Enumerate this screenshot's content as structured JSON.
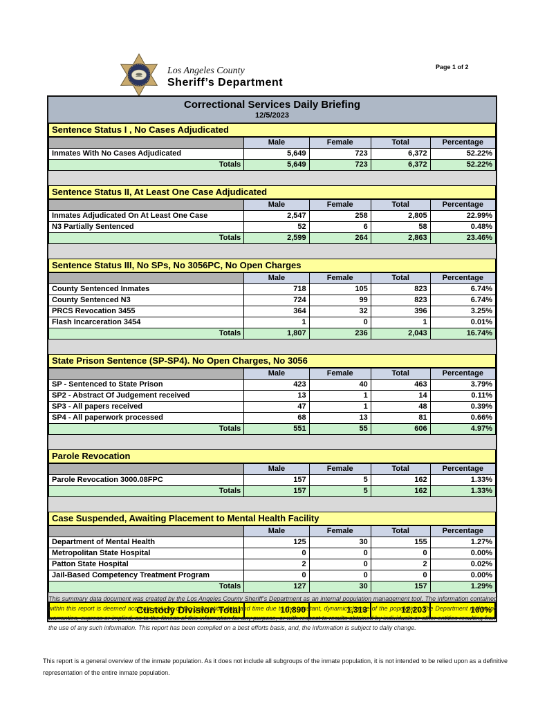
{
  "header": {
    "agency_line1": "Los Angeles County",
    "agency_line2": "Sheriff’s Department",
    "page_indicator": "Page 1 of 2"
  },
  "title_bar": {
    "title": "Correctional Services Daily Briefing",
    "date": "12/5/2023"
  },
  "columns": [
    "Male",
    "Female",
    "Total",
    "Percentage"
  ],
  "totals_label": "Totals",
  "sections": [
    {
      "heading": "Sentence Status I , No Cases Adjudicated",
      "rows": [
        [
          "Inmates With No Cases Adjudicated",
          "5,649",
          "723",
          "6,372",
          "52.22%"
        ]
      ],
      "totals": [
        "5,649",
        "723",
        "6,372",
        "52.22%"
      ]
    },
    {
      "heading": "Sentence Status II, At Least One Case Adjudicated",
      "rows": [
        [
          "Inmates Adjudicated On At Least One Case",
          "2,547",
          "258",
          "2,805",
          "22.99%"
        ],
        [
          "N3 Partially Sentenced",
          "52",
          "6",
          "58",
          "0.48%"
        ]
      ],
      "totals": [
        "2,599",
        "264",
        "2,863",
        "23.46%"
      ]
    },
    {
      "heading": "Sentence Status III, No SPs, No 3056PC, No Open Charges",
      "rows": [
        [
          "County Sentenced Inmates",
          "718",
          "105",
          "823",
          "6.74%"
        ],
        [
          "County Sentenced N3",
          "724",
          "99",
          "823",
          "6.74%"
        ],
        [
          "PRCS Revocation 3455",
          "364",
          "32",
          "396",
          "3.25%"
        ],
        [
          "Flash Incarceration 3454",
          "1",
          "0",
          "1",
          "0.01%"
        ]
      ],
      "totals": [
        "1,807",
        "236",
        "2,043",
        "16.74%"
      ]
    },
    {
      "heading": "State Prison Sentence (SP-SP4). No Open Charges, No 3056",
      "rows": [
        [
          "SP - Sentenced to State Prison",
          "423",
          "40",
          "463",
          "3.79%"
        ],
        [
          "SP2 - Abstract Of Judgement received",
          "13",
          "1",
          "14",
          "0.11%"
        ],
        [
          "SP3 - All papers received",
          "47",
          "1",
          "48",
          "0.39%"
        ],
        [
          "SP4 - All paperwork processed",
          "68",
          "13",
          "81",
          "0.66%"
        ]
      ],
      "totals": [
        "551",
        "55",
        "606",
        "4.97%"
      ]
    },
    {
      "heading": "Parole Revocation",
      "rows": [
        [
          "Parole Revocation 3000.08FPC",
          "157",
          "5",
          "162",
          "1.33%"
        ]
      ],
      "totals": [
        "157",
        "5",
        "162",
        "1.33%"
      ]
    },
    {
      "heading": "Case Suspended, Awaiting Placement to Mental Health Facility",
      "rows": [
        [
          "Department of Mental Health",
          "125",
          "30",
          "155",
          "1.27%"
        ],
        [
          "Metropolitan State Hospital",
          "0",
          "0",
          "0",
          "0.00%"
        ],
        [
          "Patton State Hospital",
          "2",
          "0",
          "2",
          "0.02%"
        ],
        [
          "Jail-Based Competency Treatment Program",
          "0",
          "0",
          "0",
          "0.00%"
        ]
      ],
      "totals": [
        "127",
        "30",
        "157",
        "1.29%"
      ]
    }
  ],
  "grand_total": {
    "label": "Custody Division Total",
    "values": [
      "10,890",
      "1,313",
      "12,203",
      "100%"
    ]
  },
  "disclaimer": "This summary data document was created by the Los Angeles County Sheriff’s Department as an internal population management tool.  The information contained within this report is deemed accurate only as of the generation date and time due to the constant, dynamic change of the population.  The Department makes no warranties, express or implied, as to the fitness of this information for any purpose, or with respect to results obtained by individuals or other entities resulting from the use of any such information.  This report has been compiled on a best efforts basis, and, the information is subject to daily change.",
  "footnote": "This report is a general overview of the inmate population.  As it does not include all subgroups of the inmate population, it is not intended to be relied upon as a definitive representation of the entire inmate population.",
  "colors": {
    "title_bar_bg": "#aeb8c6",
    "section_heading_bg": "#ffff9c",
    "column_header_bg": "#cdd5e6",
    "corner_cell_bg": "#b2b2b2",
    "totals_row_bg": "#ccf2cf",
    "grand_total_bg": "#ffff00",
    "report_bg": "#d9d9d9",
    "badge_gold": "#c9aa6d",
    "badge_navy": "#2a3560"
  }
}
